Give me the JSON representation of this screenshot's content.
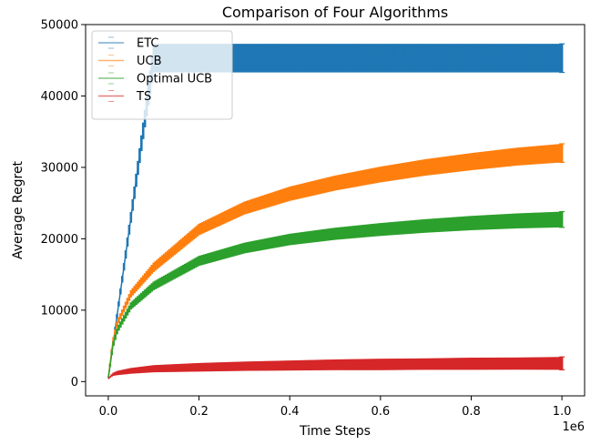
{
  "chart_data": {
    "type": "line",
    "title": "Comparison of Four Algorithms",
    "xlabel": "Time Steps",
    "ylabel": "Average Regret",
    "x_offset_text": "1e6",
    "xlim": [
      -0.05,
      1.05
    ],
    "ylim": [
      -2000,
      50000
    ],
    "x_ticks": [
      0.0,
      0.2,
      0.4,
      0.6,
      0.8,
      1.0
    ],
    "x_tick_labels": [
      "0.0",
      "0.2",
      "0.4",
      "0.6",
      "0.8",
      "1.0"
    ],
    "y_ticks": [
      0,
      10000,
      20000,
      30000,
      40000,
      50000
    ],
    "y_tick_labels": [
      "0",
      "10000",
      "20000",
      "30000",
      "40000",
      "50000"
    ],
    "grid": false,
    "legend_position": "top-left",
    "series": [
      {
        "name": "ETC",
        "color": "#1f77b4",
        "style": "errorbar",
        "x": [
          0.0,
          0.02,
          0.04,
          0.06,
          0.08,
          0.1,
          0.2,
          0.4,
          0.6,
          0.8,
          1.0
        ],
        "y": [
          500,
          9500,
          18500,
          27500,
          36500,
          45300,
          45300,
          45300,
          45300,
          45300,
          45300
        ],
        "error": [
          0,
          300,
          600,
          900,
          1200,
          2000,
          2000,
          2000,
          2000,
          2000,
          2000
        ]
      },
      {
        "name": "UCB",
        "color": "#ff7f0e",
        "style": "errorbar",
        "x": [
          0.0,
          0.01,
          0.02,
          0.05,
          0.1,
          0.2,
          0.3,
          0.4,
          0.5,
          0.6,
          0.7,
          0.8,
          0.9,
          1.0
        ],
        "y": [
          500,
          5500,
          8200,
          12300,
          16000,
          21300,
          24300,
          26300,
          27800,
          29000,
          30000,
          30800,
          31500,
          32000
        ],
        "error": [
          0,
          300,
          400,
          500,
          650,
          800,
          900,
          1000,
          1050,
          1100,
          1150,
          1200,
          1250,
          1300
        ]
      },
      {
        "name": "Optimal UCB",
        "color": "#2ca02c",
        "style": "errorbar",
        "x": [
          0.0,
          0.01,
          0.02,
          0.05,
          0.1,
          0.2,
          0.3,
          0.4,
          0.5,
          0.6,
          0.7,
          0.8,
          0.9,
          1.0
        ],
        "y": [
          500,
          5000,
          7200,
          10600,
          13400,
          16900,
          18700,
          19900,
          20700,
          21300,
          21800,
          22200,
          22500,
          22700
        ],
        "error": [
          0,
          300,
          400,
          500,
          600,
          700,
          750,
          800,
          850,
          900,
          950,
          1000,
          1050,
          1100
        ]
      },
      {
        "name": "TS",
        "color": "#d62728",
        "style": "errorbar",
        "x": [
          0.0,
          0.01,
          0.02,
          0.05,
          0.1,
          0.2,
          0.3,
          0.4,
          0.5,
          0.6,
          0.7,
          0.8,
          0.9,
          1.0
        ],
        "y": [
          400,
          1000,
          1200,
          1500,
          1800,
          2000,
          2150,
          2250,
          2350,
          2400,
          2450,
          2500,
          2520,
          2550
        ],
        "error": [
          0,
          200,
          300,
          400,
          500,
          600,
          650,
          700,
          750,
          800,
          800,
          850,
          850,
          900
        ]
      }
    ]
  }
}
